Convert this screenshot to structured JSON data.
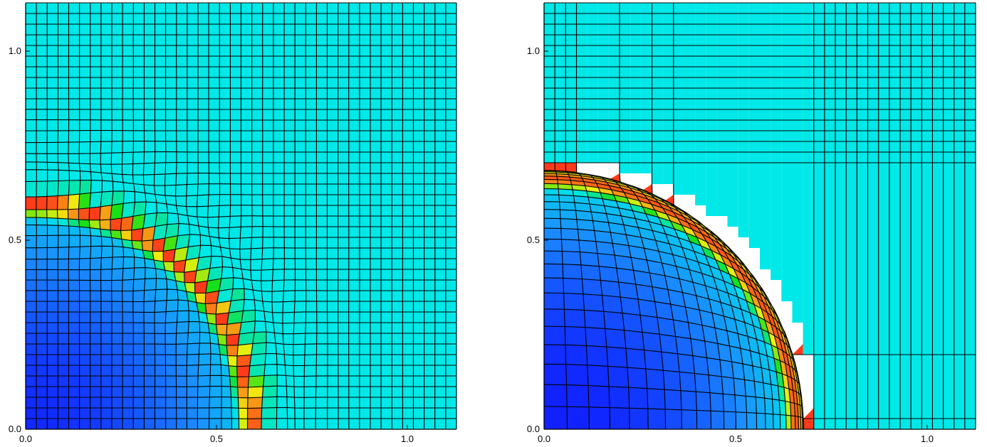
{
  "panels": [
    {
      "id": "left",
      "xticks": [
        "0.0",
        "0.5",
        "1.0"
      ],
      "yticks": [
        "0.0",
        "0.5",
        "1.0"
      ],
      "xlim": [
        0.0,
        1.13
      ],
      "ylim": [
        0.0,
        1.12
      ],
      "mesh_cells": 40,
      "front_radius": 0.62,
      "front_width": 0.085,
      "front_mesh_type": "shock-ring"
    },
    {
      "id": "right",
      "xticks": [
        "0.0",
        "0.5",
        "1.0"
      ],
      "yticks": [
        "0.0",
        "0.5",
        "1.0"
      ],
      "xlim": [
        0.0,
        1.13
      ],
      "ylim": [
        0.0,
        1.12
      ],
      "mesh_cells": 40,
      "front_radius": 0.68,
      "front_mesh_type": "lagrangian-compressed"
    }
  ],
  "colors": {
    "background_field": "#00f0f0",
    "low": "#1020ff",
    "mid_low": "#1a8cff",
    "mid": "#00e8e8",
    "green": "#16e016",
    "yellow": "#f0f010",
    "high": "#ff3a1a",
    "grid_line": "#000000"
  }
}
